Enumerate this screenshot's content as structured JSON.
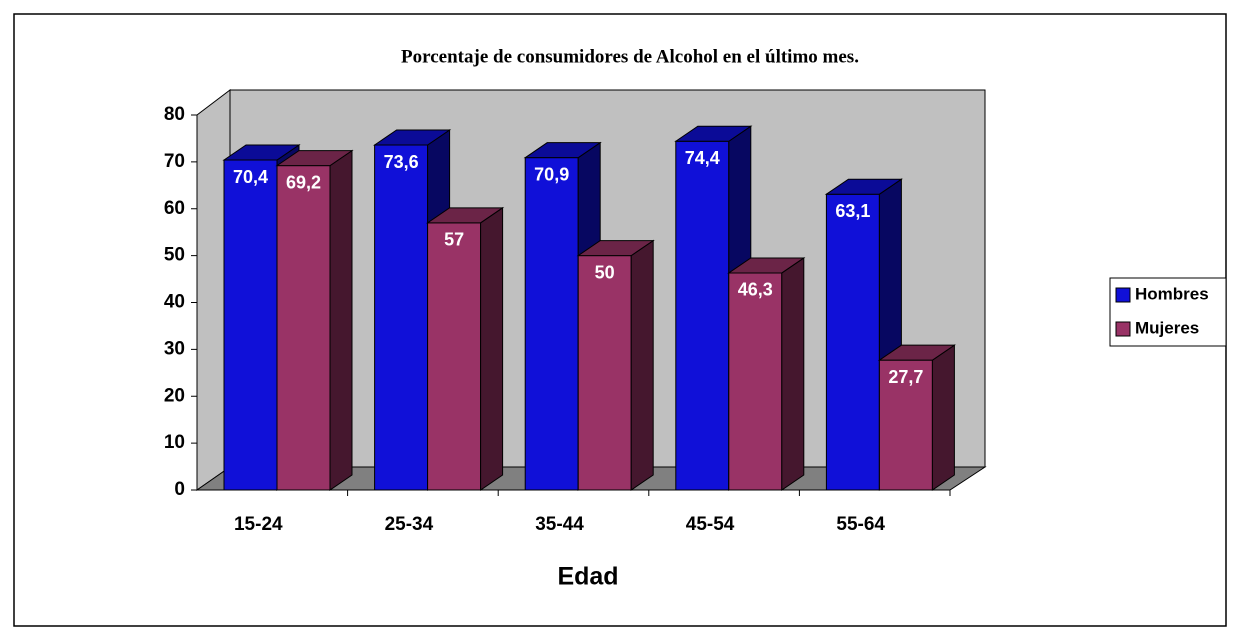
{
  "chart_data": {
    "type": "bar3d",
    "title": "Porcentaje de consumidores de Alcohol en el último mes.",
    "x_label": "Edad",
    "categories": [
      "15-24",
      "25-34",
      "35-44",
      "45-54",
      "55-64"
    ],
    "series": [
      {
        "name": "Hombres",
        "color": "#1010d8",
        "values": [
          70.4,
          73.6,
          70.9,
          74.4,
          63.1
        ],
        "value_labels": [
          "70,4",
          "73,6",
          "70,9",
          "74,4",
          "63,1"
        ]
      },
      {
        "name": "Mujeres",
        "color": "#993366",
        "values": [
          69.2,
          57,
          50,
          46.3,
          27.7
        ],
        "value_labels": [
          "69,2",
          "57",
          "50",
          "46,3",
          "27,7"
        ]
      }
    ],
    "ylim": [
      0,
      80
    ],
    "yticks": [
      0,
      10,
      20,
      30,
      40,
      50,
      60,
      70,
      80
    ],
    "legend": "right"
  }
}
